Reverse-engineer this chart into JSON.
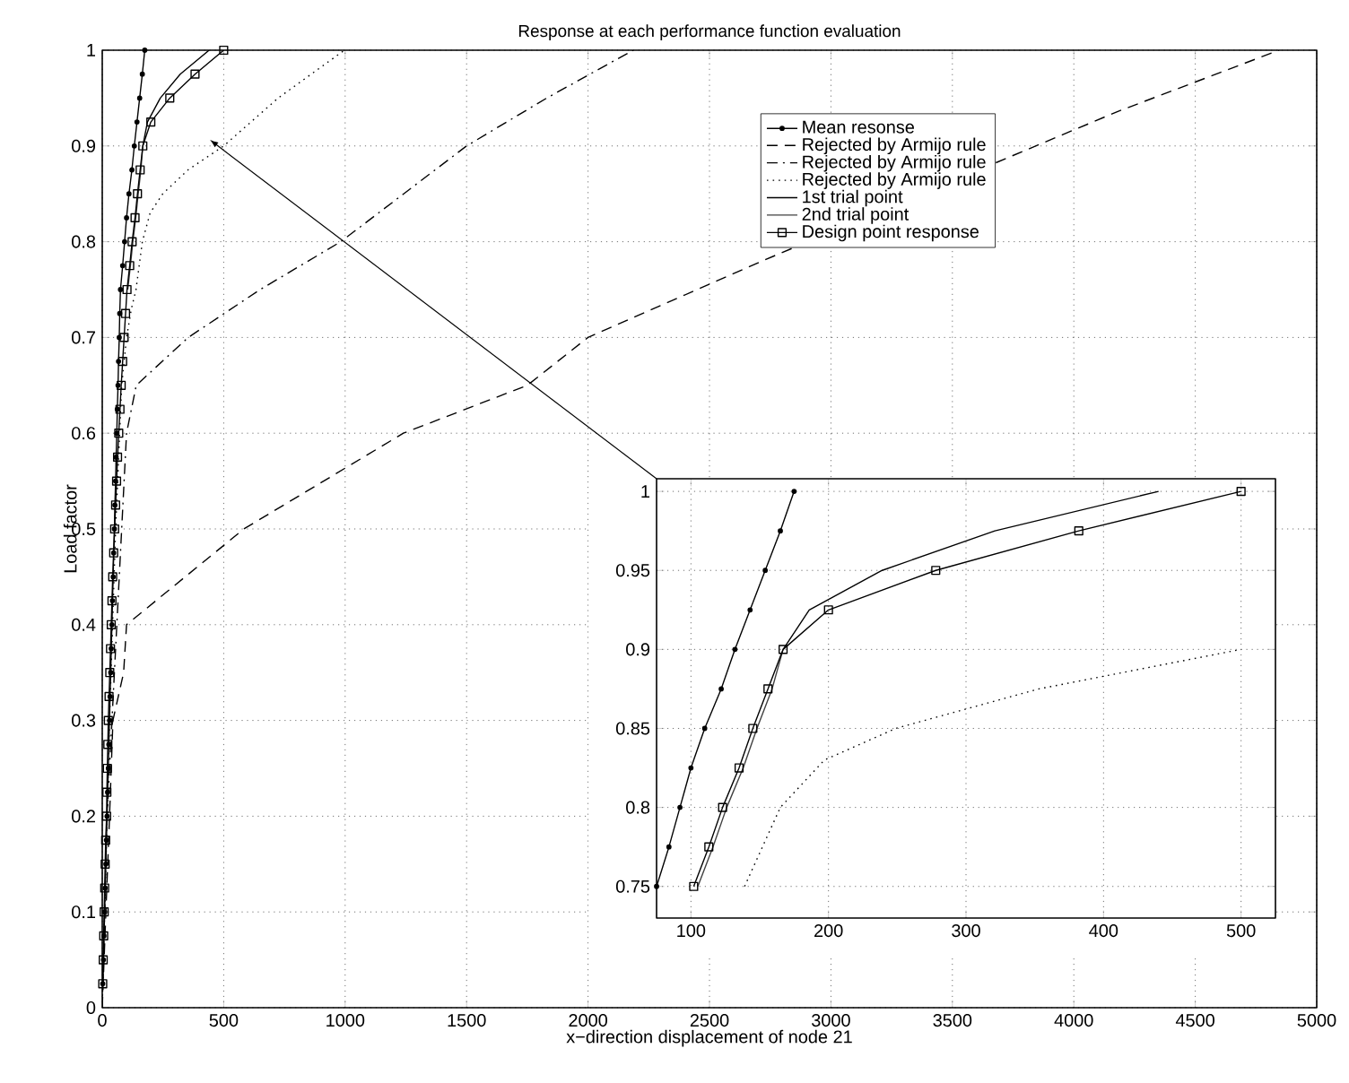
{
  "chart_data": [
    {
      "type": "line",
      "title": "Response at each performance function evaluation",
      "xlabel": "x−direction displacement of node 21",
      "ylabel": "Load factor",
      "xlim": [
        0,
        5000
      ],
      "ylim": [
        0,
        1
      ],
      "xticks": [
        0,
        500,
        1000,
        1500,
        2000,
        2500,
        3000,
        3500,
        4000,
        4500,
        5000
      ],
      "yticks": [
        0,
        0.1,
        0.2,
        0.3,
        0.4,
        0.5,
        0.6,
        0.7,
        0.8,
        0.9,
        1
      ],
      "grid": true,
      "legend": "top right",
      "series": [
        {
          "name": "Mean resonse",
          "color": "#000000",
          "marker": "circle",
          "line_style": "solid",
          "x": [
            2,
            5,
            7,
            10,
            12,
            15,
            17,
            20,
            22,
            25,
            27,
            30,
            32,
            35,
            37,
            40,
            42,
            45,
            47,
            50,
            52,
            55,
            57,
            60,
            62,
            65,
            67,
            70,
            72,
            75,
            84,
            92,
            100,
            110,
            122,
            132,
            143,
            154,
            165,
            175
          ],
          "values": [
            0.025,
            0.05,
            0.075,
            0.1,
            0.125,
            0.15,
            0.175,
            0.2,
            0.225,
            0.25,
            0.275,
            0.3,
            0.325,
            0.35,
            0.375,
            0.4,
            0.425,
            0.45,
            0.475,
            0.5,
            0.525,
            0.55,
            0.575,
            0.6,
            0.625,
            0.65,
            0.675,
            0.7,
            0.725,
            0.75,
            0.775,
            0.8,
            0.825,
            0.85,
            0.875,
            0.9,
            0.925,
            0.95,
            0.975,
            1
          ]
        },
        {
          "name": "Rejected by Armijo rule",
          "color": "#000000",
          "marker": "none",
          "line_style": "dashed",
          "x": [
            0,
            15,
            30,
            44,
            88,
            100,
            583,
            1240,
            1750,
            2000,
            2718,
            4181,
            4845
          ],
          "values": [
            0,
            0.1,
            0.2,
            0.3,
            0.35,
            0.4,
            0.5,
            0.6,
            0.65,
            0.7,
            0.78,
            0.936,
            1
          ]
        },
        {
          "name": "Rejected by Armijo rule",
          "color": "#000000",
          "marker": "none",
          "line_style": "dashdot",
          "x": [
            0,
            20,
            40,
            60,
            80,
            100,
            140,
            354,
            650,
            982,
            1500,
            1830,
            2186
          ],
          "values": [
            0,
            0.2,
            0.3,
            0.4,
            0.5,
            0.6,
            0.65,
            0.7,
            0.75,
            0.8,
            0.9,
            0.95,
            1
          ]
        },
        {
          "name": "Rejected by Armijo rule",
          "color": "#000000",
          "marker": "none",
          "line_style": "dotted",
          "x": [
            0,
            30,
            55,
            80,
            100,
            120,
            139,
            165,
            197,
            249,
            353,
            500,
            724,
            997
          ],
          "values": [
            0,
            0.3,
            0.5,
            0.65,
            0.7,
            0.73,
            0.75,
            0.8,
            0.83,
            0.85,
            0.875,
            0.9,
            0.95,
            1
          ]
        },
        {
          "name": "1st trial point",
          "color": "#000000",
          "marker": "none",
          "line_style": "solid",
          "x": [
            167,
            186,
            239,
            321,
            440
          ],
          "values": [
            0.9,
            0.925,
            0.95,
            0.975,
            1
          ]
        },
        {
          "name": "2nd trial point",
          "color": "#404040",
          "marker": "none",
          "line_style": "solid",
          "x": [
            105,
            116,
            126,
            138,
            148,
            159,
            167
          ],
          "values": [
            0.75,
            0.775,
            0.8,
            0.825,
            0.85,
            0.875,
            0.9
          ]
        },
        {
          "name": "Design point response",
          "color": "#000000",
          "marker": "square",
          "line_style": "solid",
          "x": [
            2,
            4,
            6,
            8,
            10,
            12,
            14,
            18,
            19,
            21,
            23,
            25,
            28,
            31,
            34,
            37,
            40,
            43,
            47,
            51,
            55,
            59,
            63,
            68,
            73,
            78,
            84,
            90,
            96,
            102,
            113,
            123,
            135,
            145,
            156,
            167,
            200,
            278,
            382,
            500
          ],
          "values": [
            0.025,
            0.05,
            0.075,
            0.1,
            0.125,
            0.15,
            0.175,
            0.2,
            0.225,
            0.25,
            0.275,
            0.3,
            0.325,
            0.35,
            0.375,
            0.4,
            0.425,
            0.45,
            0.475,
            0.5,
            0.525,
            0.55,
            0.575,
            0.6,
            0.625,
            0.65,
            0.675,
            0.7,
            0.725,
            0.75,
            0.775,
            0.8,
            0.825,
            0.85,
            0.875,
            0.9,
            0.925,
            0.95,
            0.975,
            1
          ]
        }
      ]
    },
    {
      "type": "line",
      "xlim": [
        75,
        525
      ],
      "ylim": [
        0.73,
        1.008
      ],
      "xticks": [
        100,
        200,
        300,
        400,
        500
      ],
      "yticks": [
        0.75,
        0.8,
        0.85,
        0.9,
        0.95,
        1
      ],
      "grid": true,
      "series": [
        {
          "color": "#000000",
          "marker": "circle",
          "line_style": "solid",
          "x": [
            75,
            84,
            92,
            100,
            110,
            122,
            132,
            143,
            154,
            165,
            175
          ],
          "values": [
            0.75,
            0.775,
            0.8,
            0.825,
            0.85,
            0.875,
            0.9,
            0.925,
            0.95,
            0.975,
            1
          ]
        },
        {
          "color": "#000000",
          "marker": "none",
          "line_style": "dotted",
          "x": [
            139,
            165,
            197,
            249,
            353,
            500
          ],
          "values": [
            0.75,
            0.8,
            0.83,
            0.85,
            0.875,
            0.9
          ]
        },
        {
          "color": "#000000",
          "marker": "none",
          "line_style": "solid",
          "x": [
            167,
            186,
            239,
            321,
            440
          ],
          "values": [
            0.9,
            0.925,
            0.95,
            0.975,
            1
          ]
        },
        {
          "color": "#404040",
          "marker": "none",
          "line_style": "solid",
          "x": [
            105,
            116,
            126,
            138,
            148,
            159,
            167
          ],
          "values": [
            0.75,
            0.775,
            0.8,
            0.825,
            0.85,
            0.875,
            0.9
          ]
        },
        {
          "color": "#000000",
          "marker": "square",
          "line_style": "solid",
          "x": [
            102,
            113,
            123,
            135,
            145,
            156,
            167,
            200,
            278,
            382,
            500
          ],
          "values": [
            0.75,
            0.775,
            0.8,
            0.825,
            0.85,
            0.875,
            0.9,
            0.925,
            0.95,
            0.975,
            1
          ]
        }
      ]
    }
  ]
}
